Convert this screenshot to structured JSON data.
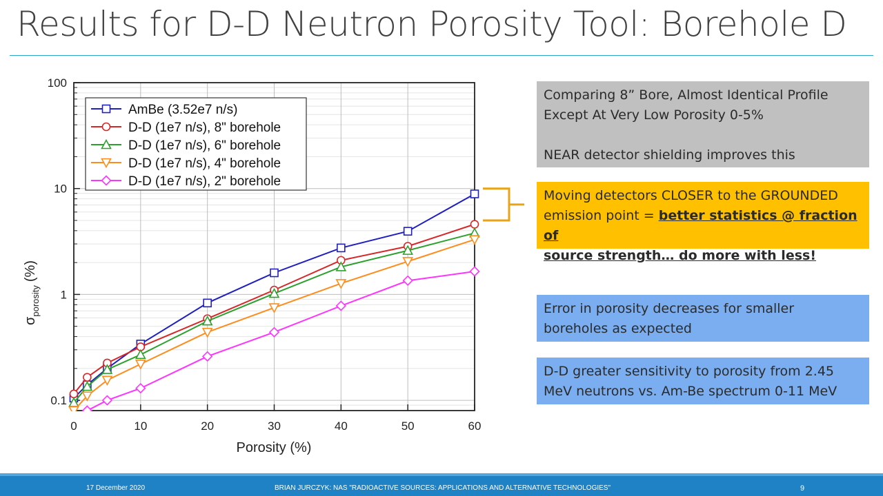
{
  "slide": {
    "title": "Results for D-D Neutron Porosity Tool: Borehole D"
  },
  "callouts": {
    "gray": {
      "line1": "Comparing 8” Bore, Almost Identical Profile",
      "line2": "Except At Very Low Porosity 0-5%",
      "line3": "NEAR detector shielding improves this"
    },
    "amber": {
      "line1": "Moving detectors CLOSER to the GROUNDED",
      "line2_plain": "emission point = ",
      "line2_bold": "better statistics @ fraction of",
      "line3_bold": "source strength… do more with less!"
    },
    "blue1": {
      "line1": "Error in porosity decreases for smaller",
      "line2": "boreholes as expected"
    },
    "blue2": {
      "line1": "D-D greater sensitivity to porosity from 2.45",
      "line2": "MeV neutrons vs. Am-Be spectrum 0-11 MeV"
    }
  },
  "footer": {
    "date": "17 December 2020",
    "center": "BRIAN JURCZYK:   NAS \"RADIOACTIVE SOURCES: APPLICATIONS AND ALTERNATIVE TECHNOLOGIES\"",
    "page": "9"
  },
  "colors": {
    "accent": "#2aa6c8",
    "footer": "#1f82c4",
    "gray_box": "#c0c0c0",
    "amber_box": "#ffc000",
    "blue_box": "#7aaef0"
  },
  "chart_data": {
    "type": "line",
    "xlabel": "Porosity (%)",
    "ylabel_main": "σ",
    "ylabel_sub": "porosity",
    "ylabel_unit": "(%)",
    "xlim": [
      0,
      60
    ],
    "ylim": [
      0.08,
      100
    ],
    "yscale": "log",
    "grid": true,
    "legend_position": "top-left",
    "x_ticks": [
      0,
      10,
      20,
      30,
      40,
      50,
      60
    ],
    "y_ticks": [
      0.1,
      1,
      10,
      100
    ],
    "y_tick_labels": [
      "0.1",
      "1",
      "10",
      "100"
    ],
    "series": [
      {
        "name": "AmBe (3.52e7 n/s)",
        "color": "#1f1fbf",
        "marker": "square",
        "x": [
          0,
          2,
          5,
          10,
          20,
          30,
          40,
          50,
          60
        ],
        "y": [
          0.105,
          0.14,
          0.2,
          0.34,
          0.83,
          1.6,
          2.75,
          3.95,
          8.9
        ]
      },
      {
        "name": "D-D (1e7 n/s), 8\" borehole",
        "color": "#d62728",
        "marker": "circle",
        "x": [
          0,
          2,
          5,
          10,
          20,
          30,
          40,
          50,
          60
        ],
        "y": [
          0.115,
          0.165,
          0.225,
          0.32,
          0.59,
          1.1,
          2.1,
          2.85,
          4.6
        ]
      },
      {
        "name": "D-D (1e7 n/s), 6\" borehole",
        "color": "#2ca02c",
        "marker": "triangle-up",
        "x": [
          0,
          2,
          5,
          10,
          20,
          30,
          40,
          50,
          60
        ],
        "y": [
          0.095,
          0.135,
          0.195,
          0.27,
          0.56,
          1.02,
          1.82,
          2.6,
          3.8
        ]
      },
      {
        "name": "D-D (1e7 n/s), 4\" borehole",
        "color": "#ff8c1a",
        "marker": "triangle-down",
        "x": [
          0,
          2,
          5,
          10,
          20,
          30,
          40,
          50,
          60
        ],
        "y": [
          0.08,
          0.11,
          0.155,
          0.22,
          0.44,
          0.75,
          1.27,
          2.05,
          3.3
        ]
      },
      {
        "name": "D-D (1e7 n/s), 2\" borehole",
        "color": "#ff33ff",
        "marker": "diamond",
        "x": [
          2,
          5,
          10,
          20,
          30,
          40,
          50,
          60
        ],
        "y": [
          0.08,
          0.1,
          0.13,
          0.26,
          0.44,
          0.78,
          1.35,
          1.65
        ]
      }
    ],
    "annotation": {
      "type": "bracket",
      "color": "#e8a317",
      "y_range": [
        5,
        10
      ]
    }
  }
}
